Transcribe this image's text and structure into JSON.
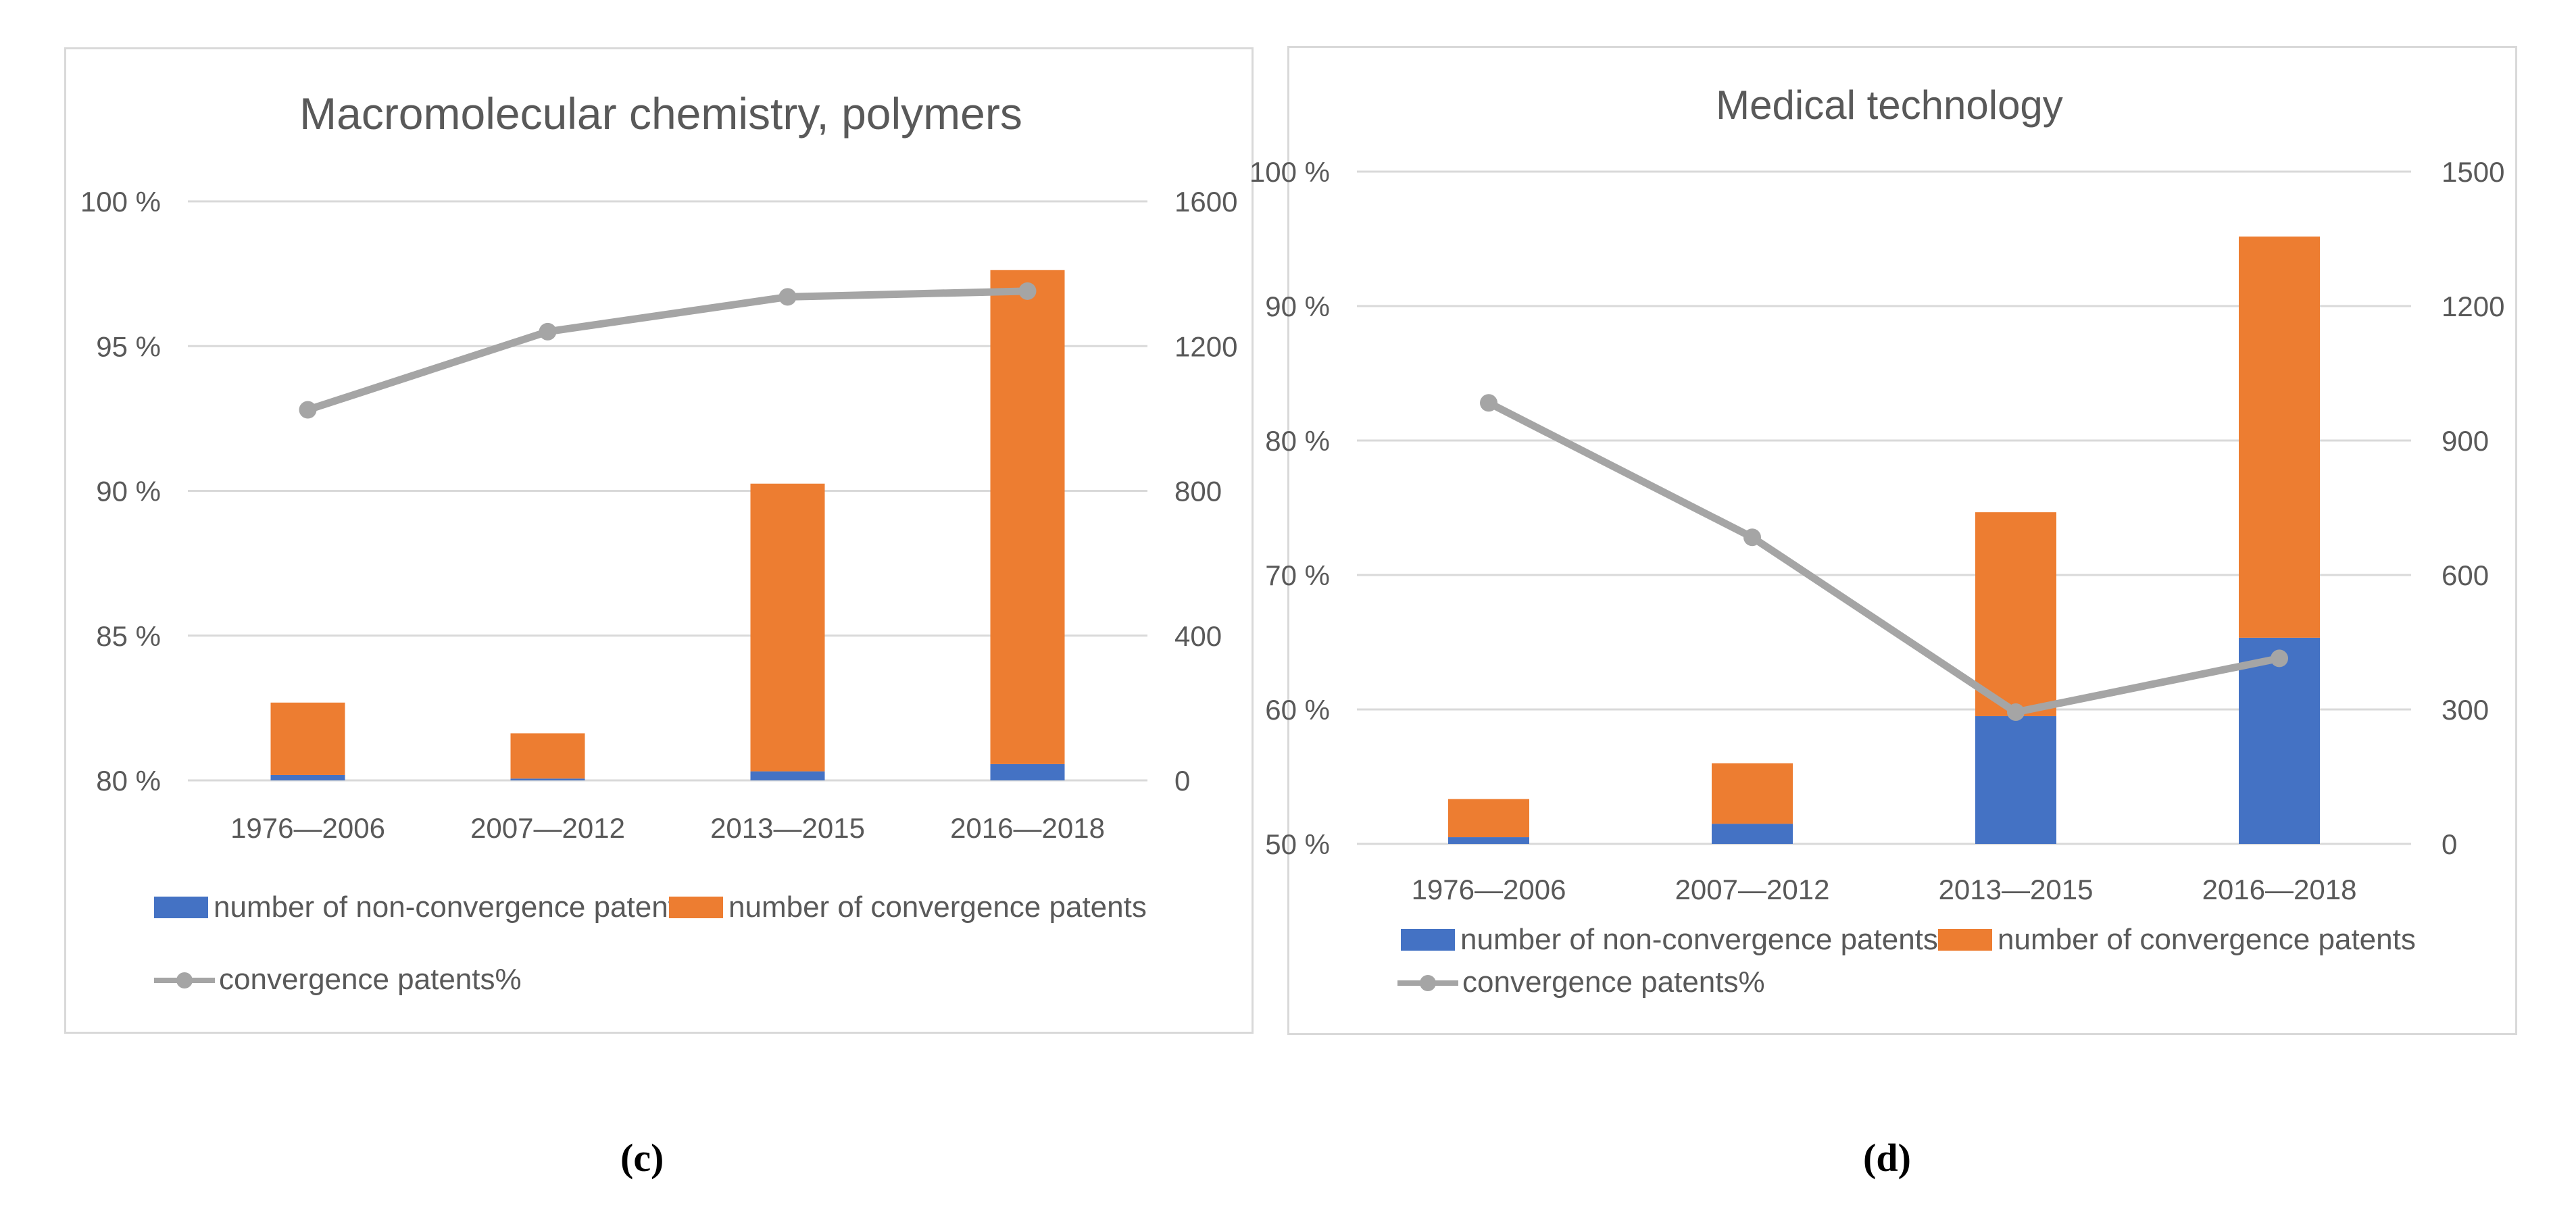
{
  "colors": {
    "non_convergence": "#4472c4",
    "convergence": "#ed7d31",
    "line": "#a5a5a5",
    "grid": "#d9d9d9",
    "axis_text": "#595959"
  },
  "captions": {
    "c": "(c)",
    "d": "(d)"
  },
  "chart_data": [
    {
      "type": "bar",
      "stacked": true,
      "title": "Macromolecular chemistry, polymers",
      "categories": [
        "1976—2006",
        "2007—2012",
        "2013―2015",
        "2016—2018"
      ],
      "series": [
        {
          "name": "number of non-convergence patents",
          "axis": "right",
          "values": [
            15,
            5,
            25,
            45
          ]
        },
        {
          "name": "number of convergence patents",
          "axis": "right",
          "values": [
            200,
            125,
            795,
            1365
          ]
        },
        {
          "name": "convergence patents%",
          "type": "line",
          "axis": "left",
          "values": [
            92.8,
            95.5,
            96.7,
            96.9
          ]
        }
      ],
      "left_axis": {
        "min": 80,
        "max": 100,
        "step": 5,
        "tick_labels": [
          "80 %",
          "85 %",
          "90 %",
          "95 %",
          "100 %"
        ]
      },
      "right_axis": {
        "min": 0,
        "max": 1600,
        "step": 400,
        "tick_labels": [
          "0",
          "400",
          "800",
          "1200",
          "1600"
        ]
      },
      "grid": true,
      "legend": "bottom"
    },
    {
      "type": "bar",
      "stacked": true,
      "title": "Medical technology",
      "categories": [
        "1976—2006",
        "2007—2012",
        "2013—2015",
        "2016—2018"
      ],
      "series": [
        {
          "name": "number of non-convergence patents",
          "axis": "right",
          "values": [
            15,
            45,
            285,
            460
          ]
        },
        {
          "name": "number of convergence patents",
          "axis": "right",
          "values": [
            85,
            135,
            455,
            895
          ]
        },
        {
          "name": "convergence patents%",
          "type": "line",
          "axis": "left",
          "values": [
            82.8,
            72.8,
            59.8,
            63.8
          ]
        }
      ],
      "left_axis": {
        "min": 50,
        "max": 100,
        "step": 10,
        "tick_labels": [
          "50 %",
          "60 %",
          "70 %",
          "80 %",
          "90 %",
          "100 %"
        ]
      },
      "right_axis": {
        "min": 0,
        "max": 1500,
        "step": 300,
        "tick_labels": [
          "0",
          "300",
          "600",
          "900",
          "1200",
          "1500"
        ]
      },
      "grid": true,
      "legend": "bottom"
    }
  ]
}
